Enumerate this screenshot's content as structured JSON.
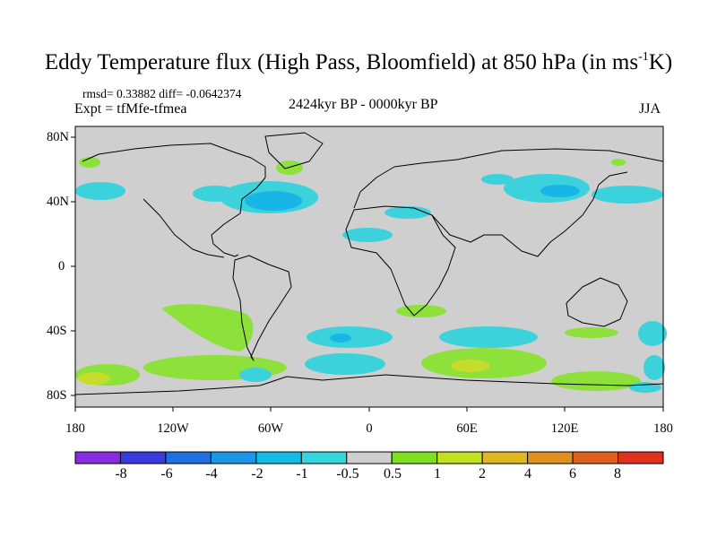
{
  "title": {
    "main": "Eddy Temperature flux (High Pass, Bloomfield) at 850 hPa (in ms",
    "sup": "-1",
    "end": "K)"
  },
  "subtitle": {
    "stats": "rmsd= 0.33882 diff= -0.0642374",
    "expt": "Expt = tfMfe-tfmea",
    "period": "2424kyr BP - 0000kyr BP",
    "season": "JJA"
  },
  "map": {
    "projection": "cylindrical equidistant",
    "lat_labels": [
      "80N",
      "40N",
      "0",
      "40S",
      "80S"
    ],
    "lon_labels": [
      "180",
      "120W",
      "60W",
      "0",
      "60E",
      "120E",
      "180"
    ],
    "background_color": "#cfcfcf"
  },
  "colorbar": {
    "labels": [
      "-8",
      "-6",
      "-4",
      "-2",
      "-1",
      "-0.5",
      "0.5",
      "1",
      "2",
      "4",
      "6",
      "8"
    ],
    "colors": [
      "#8a2be2",
      "#3a3ae0",
      "#1e6fe0",
      "#1a98e6",
      "#14bce8",
      "#33d6dc",
      "#cfcfcf",
      "#7ee01e",
      "#c2e01e",
      "#e0b81e",
      "#e0901e",
      "#e0601e",
      "#e0301e"
    ]
  },
  "colors": {
    "cyan": "#3cd2dc",
    "blue": "#17b6e6",
    "green": "#8ee03a",
    "yellow": "#c6dc2a"
  }
}
